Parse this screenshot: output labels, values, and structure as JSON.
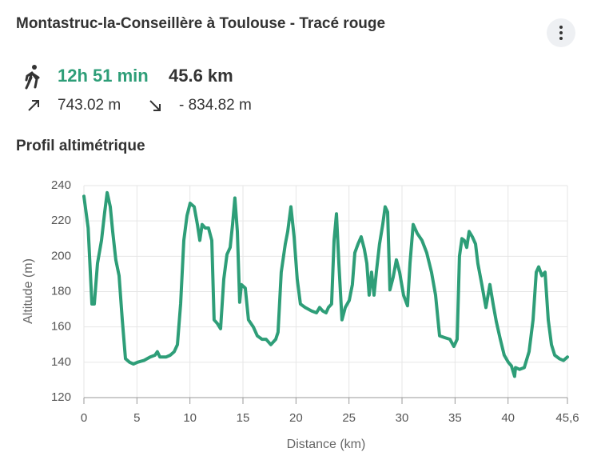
{
  "header": {
    "title": "Montastruc-la-Conseillère à Toulouse - Tracé rouge",
    "duration": "12h 51 min",
    "distance": "45.6 km",
    "ascent": "743.02 m",
    "descent": "- 834.82 m",
    "section_title": "Profil altimétrique"
  },
  "chart_data": {
    "type": "line",
    "x_label": "Distance (km)",
    "y_label": "Altitude (m)",
    "xlim": [
      0,
      45.6
    ],
    "ylim": [
      120,
      240
    ],
    "xticks": [
      0,
      5,
      10,
      15,
      20,
      25,
      30,
      35,
      40,
      {
        "value": 45.6,
        "label": "45,6"
      }
    ],
    "yticks": [
      120,
      140,
      160,
      180,
      200,
      220,
      240
    ],
    "grid": true,
    "series": [
      {
        "name": "Altitude",
        "color": "#2e9e78",
        "x": [
          0,
          0.4,
          0.75,
          0.98,
          1.28,
          1.66,
          1.96,
          2.19,
          2.49,
          2.71,
          3.01,
          3.32,
          3.62,
          3.92,
          4.3,
          4.67,
          5.05,
          5.65,
          6.25,
          6.7,
          6.93,
          7.16,
          7.76,
          8.14,
          8.52,
          8.82,
          9.12,
          9.42,
          9.72,
          10.02,
          10.4,
          10.7,
          10.93,
          11.15,
          11.45,
          11.75,
          12.06,
          12.28,
          12.58,
          12.89,
          13.19,
          13.49,
          13.79,
          14.02,
          14.24,
          14.47,
          14.69,
          14.85,
          15.22,
          15.52,
          15.98,
          16.35,
          16.8,
          17.18,
          17.63,
          18.09,
          18.31,
          18.61,
          18.99,
          19.22,
          19.52,
          19.82,
          20.12,
          20.42,
          20.87,
          21.48,
          21.93,
          22.23,
          22.53,
          22.84,
          23.06,
          23.36,
          23.59,
          23.82,
          24.04,
          24.34,
          24.65,
          25.02,
          25.32,
          25.55,
          25.85,
          26.15,
          26.45,
          26.68,
          26.9,
          27.13,
          27.36,
          27.58,
          27.88,
          28.18,
          28.41,
          28.64,
          28.86,
          29.16,
          29.47,
          29.77,
          30.14,
          30.52,
          30.75,
          31.05,
          31.43,
          31.88,
          32.33,
          32.78,
          33.16,
          33.54,
          33.99,
          34.52,
          34.89,
          35.2,
          35.42,
          35.65,
          35.87,
          36.1,
          36.33,
          36.63,
          36.93,
          37.15,
          37.53,
          37.91,
          38.29,
          38.59,
          38.89,
          39.27,
          39.64,
          40.02,
          40.32,
          40.62,
          40.7,
          41.08,
          41.53,
          41.98,
          42.36,
          42.66,
          42.89,
          43.19,
          43.49,
          43.79,
          44.09,
          44.4,
          44.85,
          45.22,
          45.6
        ],
        "values": [
          234,
          216,
          173,
          173,
          196,
          209,
          225,
          236,
          228,
          214,
          198,
          189,
          164,
          142,
          140,
          139,
          140,
          141,
          143,
          144,
          146,
          143,
          143,
          144,
          146,
          150,
          173,
          209,
          223,
          230,
          228,
          218,
          209,
          218,
          216,
          216,
          209,
          164,
          162,
          159,
          187,
          201,
          205,
          218,
          233,
          214,
          174,
          184,
          182,
          164,
          160,
          155,
          153,
          153,
          150,
          153,
          157,
          191,
          207,
          214,
          228,
          211,
          187,
          173,
          171,
          169,
          168,
          171,
          169,
          168,
          171,
          173,
          209,
          224,
          196,
          164,
          171,
          175,
          184,
          202,
          207,
          211,
          204,
          196,
          178,
          191,
          178,
          191,
          207,
          218,
          228,
          225,
          181,
          188,
          198,
          191,
          178,
          172,
          196,
          218,
          213,
          209,
          202,
          191,
          178,
          155,
          154,
          153,
          149,
          153,
          200,
          210,
          209,
          205,
          214,
          211,
          207,
          196,
          184,
          171,
          184,
          173,
          163,
          153,
          144,
          140,
          138,
          132,
          137,
          136,
          137,
          146,
          164,
          191,
          194,
          189,
          191,
          164,
          150,
          144,
          142,
          141,
          143
        ]
      }
    ]
  }
}
